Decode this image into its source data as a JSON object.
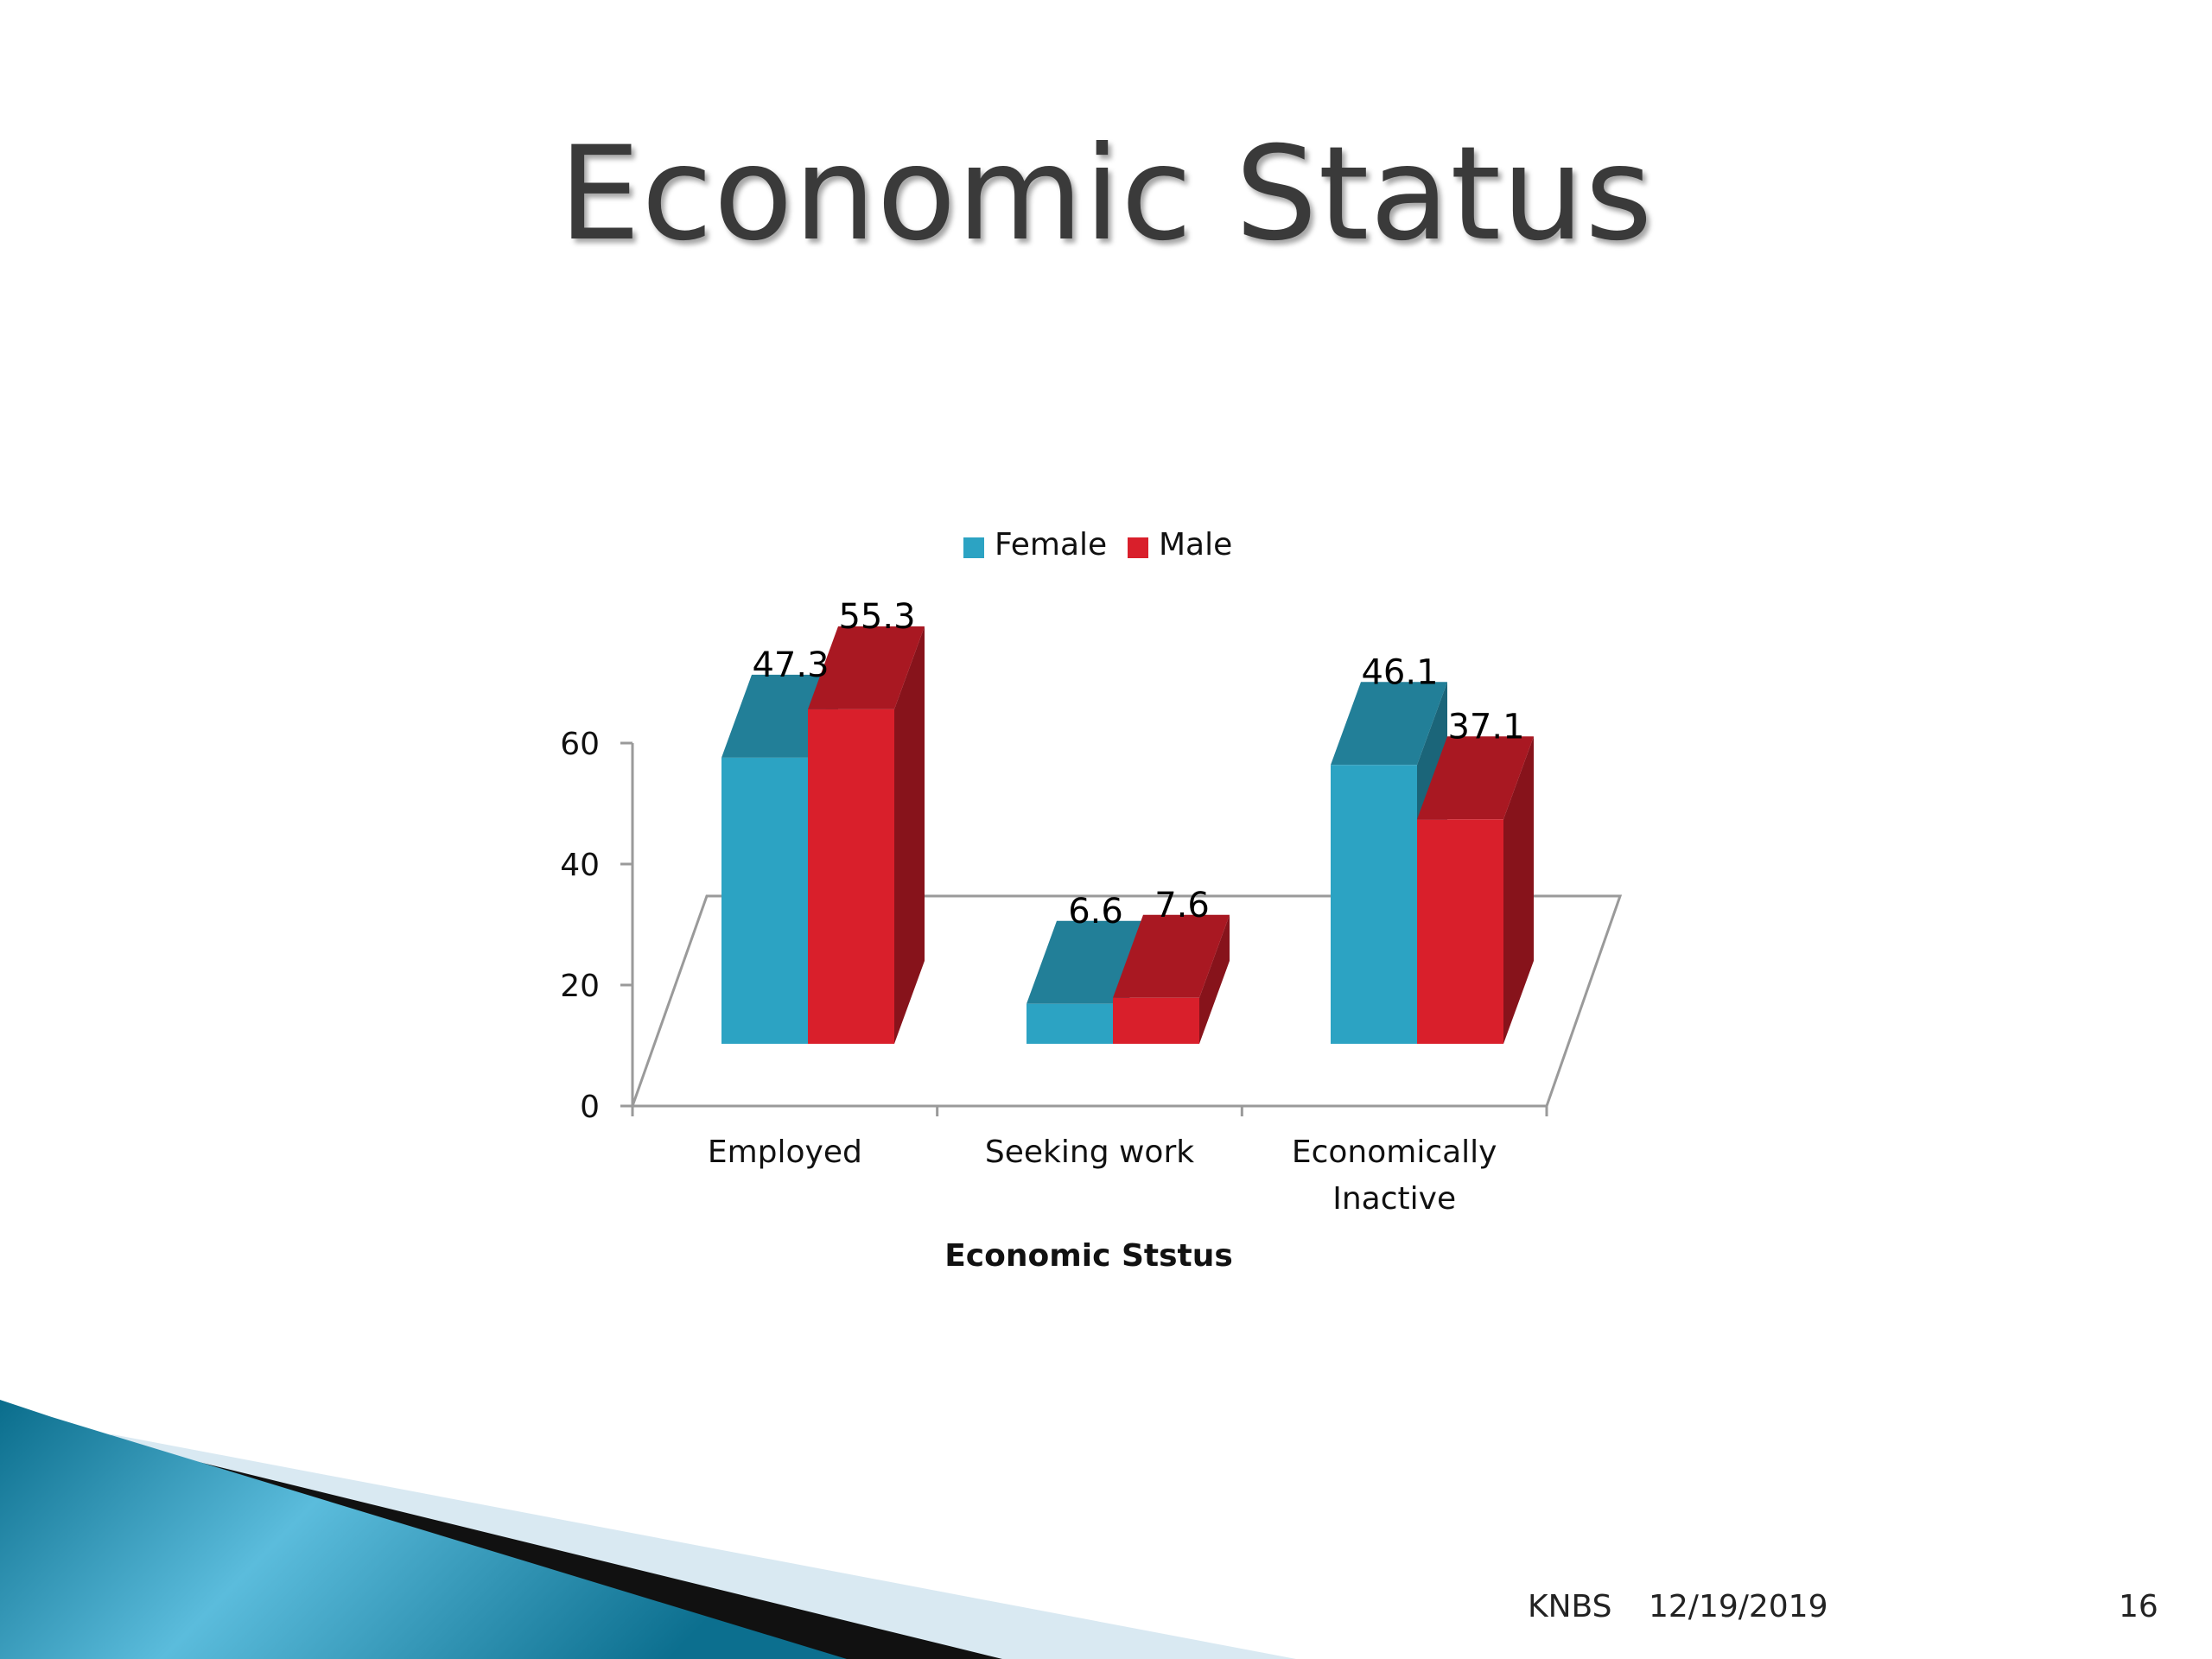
{
  "slide": {
    "title": "Economic Status",
    "footer_left": "KNBS",
    "footer_date": "12/19/2019",
    "page_number": "16"
  },
  "colors": {
    "female": "#2ca3c3",
    "male": "#d91f2b",
    "accent_teal": "#0d7a99",
    "accent_light": "#d9e9f2"
  },
  "chart_data": {
    "type": "bar",
    "variant": "3d-clustered",
    "categories": [
      "Employed",
      "Seeking work",
      "Economically Inactive"
    ],
    "category_lines": [
      [
        "Employed"
      ],
      [
        "Seeking work"
      ],
      [
        "Economically",
        "Inactive"
      ]
    ],
    "series": [
      {
        "name": "Female",
        "values": [
          47.3,
          6.6,
          46.1
        ]
      },
      {
        "name": "Male",
        "values": [
          55.3,
          7.6,
          37.1
        ]
      }
    ],
    "data_labels": [
      [
        "47.3",
        "6.6",
        "46.1"
      ],
      [
        "55.3",
        "7.6",
        "37.1"
      ]
    ],
    "xlabel": "Economic Ststus",
    "ylabel": "",
    "ylim": [
      0,
      60
    ],
    "yticks": [
      0,
      20,
      40,
      60
    ],
    "legend_position": "top",
    "grid": false
  }
}
